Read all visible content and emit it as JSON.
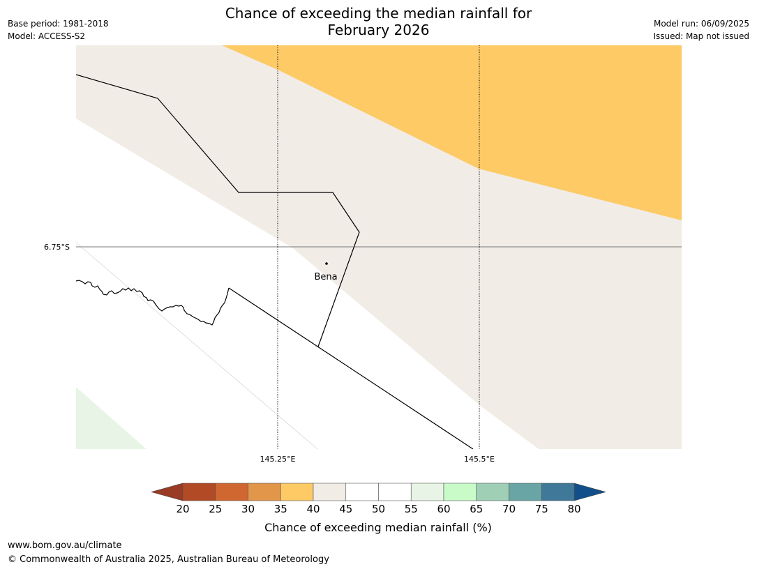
{
  "header": {
    "base_period": "Base period: 1981-2018",
    "model": "Model: ACCESS-S2",
    "title_line1": "Chance of exceeding the median rainfall for",
    "title_line2": "February 2026",
    "model_run": "Model run: 06/09/2025",
    "issued": "Issued: Map not issued"
  },
  "map": {
    "latitude_labels": [
      "6.75°S"
    ],
    "longitude_labels": [
      "145.25°E",
      "145.5°E"
    ],
    "town": "Bena",
    "region_colors": {
      "35-40": "#fdca66",
      "40-45": "#f1ece6",
      "45-55": "#ffffff",
      "55-60": "#e8f5e6"
    }
  },
  "legend": {
    "title": "Chance of exceeding median rainfall (%)",
    "ticks": [
      "20",
      "25",
      "30",
      "35",
      "40",
      "45",
      "50",
      "55",
      "60",
      "65",
      "70",
      "75",
      "80"
    ],
    "under_color": "#9a3b25",
    "over_color": "#124e8a",
    "bin_colors": [
      "#b24a25",
      "#d06731",
      "#e2964a",
      "#fdca66",
      "#f1ece6",
      "#ffffff",
      "#ffffff",
      "#e8f5e6",
      "#c9fbc9",
      "#9fd0b6",
      "#6aa5a5",
      "#3f7898"
    ]
  },
  "footer": {
    "url": "www.bom.gov.au/climate",
    "copyright": "© Commonwealth of Australia 2025, Australian Bureau of Meteorology"
  }
}
